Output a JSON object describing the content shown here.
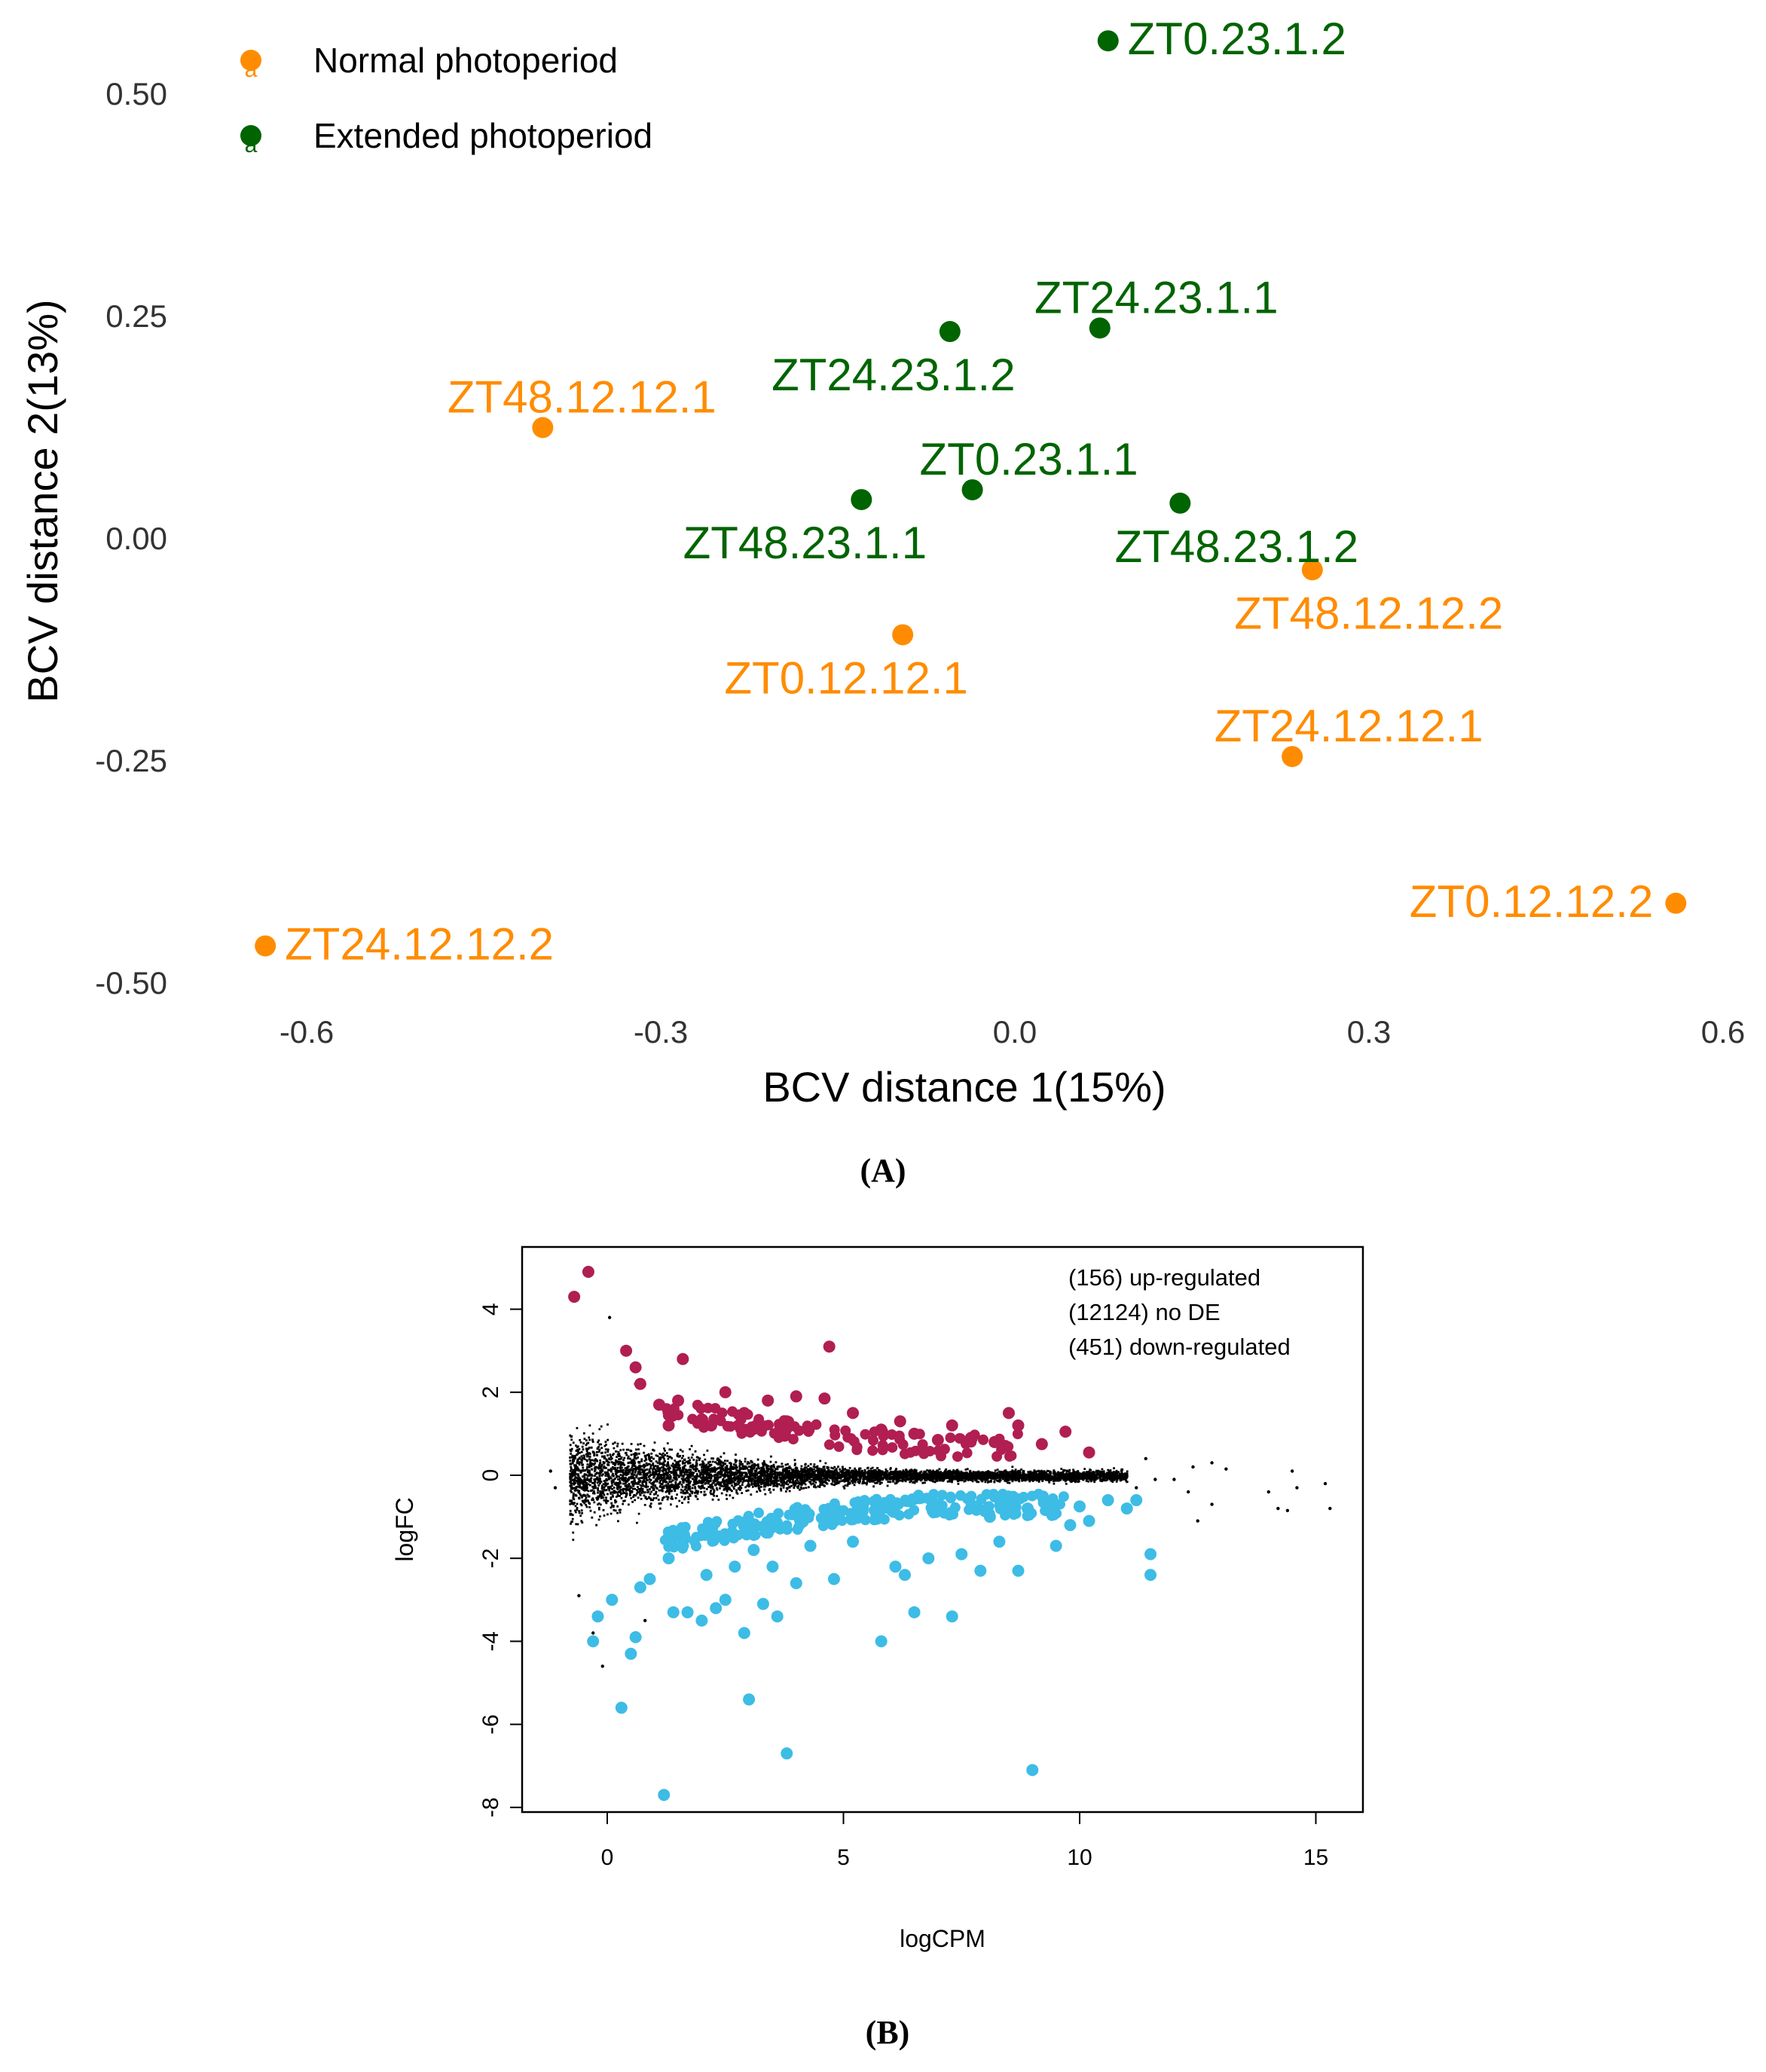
{
  "panel_a": {
    "panel_label": "(A)",
    "chart_data": {
      "type": "scatter",
      "title": "",
      "xlabel": "BCV distance 1(15%)",
      "ylabel": "BCV distance 2(13%)",
      "xlim": [
        -0.66,
        0.6
      ],
      "ylim": [
        -0.5,
        0.56
      ],
      "x_ticks": [
        -0.6,
        -0.3,
        0.0,
        0.3,
        0.6
      ],
      "x_tick_labels": [
        "-0.6",
        "-0.3",
        "0.0",
        "0.3",
        "0.6"
      ],
      "y_ticks": [
        0.5,
        0.25,
        0.0,
        -0.25,
        -0.5
      ],
      "y_tick_labels": [
        "0.50",
        "0.25",
        "0.00",
        "-0.25",
        "-0.50"
      ],
      "legend": {
        "position": "top-left",
        "marker_glyph": "a",
        "entries": [
          {
            "label": "Normal photoperiod",
            "color": "#FF8C00"
          },
          {
            "label": "Extended photoperiod",
            "color": "#006400"
          }
        ]
      },
      "series": [
        {
          "name": "Normal photoperiod",
          "color": "#FF8C00",
          "points": [
            {
              "label": "ZT48.12.12.1",
              "x": -0.4,
              "y": 0.125,
              "label_pos": "above-left"
            },
            {
              "label": "ZT48.12.12.2",
              "x": 0.252,
              "y": -0.035,
              "label_pos": "below-right"
            },
            {
              "label": "ZT0.12.12.1",
              "x": -0.095,
              "y": -0.108,
              "label_pos": "below-left"
            },
            {
              "label": "ZT24.12.12.1",
              "x": 0.235,
              "y": -0.245,
              "label_pos": "above-right"
            },
            {
              "label": "ZT0.12.12.2",
              "x": 0.56,
              "y": -0.41,
              "label_pos": "left"
            },
            {
              "label": "ZT24.12.12.2",
              "x": -0.635,
              "y": -0.458,
              "label_pos": "right"
            }
          ]
        },
        {
          "name": "Extended photoperiod",
          "color": "#006400",
          "points": [
            {
              "label": "ZT0.23.1.2",
              "x": 0.079,
              "y": 0.56,
              "label_pos": "right"
            },
            {
              "label": "ZT24.23.1.1",
              "x": 0.072,
              "y": 0.237,
              "label_pos": "above-right"
            },
            {
              "label": "ZT24.23.1.2",
              "x": -0.055,
              "y": 0.233,
              "label_pos": "below-left"
            },
            {
              "label": "ZT0.23.1.1",
              "x": -0.036,
              "y": 0.055,
              "label_pos": "above-right"
            },
            {
              "label": "ZT48.23.1.1",
              "x": -0.13,
              "y": 0.044,
              "label_pos": "below-left"
            },
            {
              "label": "ZT48.23.1.2",
              "x": 0.14,
              "y": 0.04,
              "label_pos": "below-right"
            }
          ]
        }
      ]
    }
  },
  "panel_b": {
    "panel_label": "(B)",
    "chart_data": {
      "type": "scatter",
      "title": "",
      "xlabel": "logCPM",
      "ylabel": "logFC",
      "xlim": [
        -1.8,
        15.9
      ],
      "ylim": [
        -8.2,
        5.5
      ],
      "x_ticks": [
        0,
        5,
        10,
        15
      ],
      "x_tick_labels": [
        "0",
        "5",
        "10",
        "15"
      ],
      "y_ticks": [
        -8,
        -6,
        -4,
        -2,
        0,
        2,
        4
      ],
      "y_tick_labels": [
        "-8",
        "-6",
        "-4",
        "-2",
        "0",
        "2",
        "4"
      ],
      "legend": {
        "position": "top-right",
        "entries": [
          {
            "label": "(156) up-regulated",
            "color": "#B01E52"
          },
          {
            "label": "(12124) no DE",
            "color": "#000000"
          },
          {
            "label": "(451) down-regulated",
            "color": "#3DBCE6"
          }
        ]
      },
      "series": [
        {
          "name": "up-regulated",
          "count": 156,
          "color": "#B01E52",
          "highlight_points": [
            [
              -0.7,
              4.3
            ],
            [
              -0.4,
              4.9
            ],
            [
              0.4,
              3.0
            ],
            [
              0.6,
              2.6
            ],
            [
              0.7,
              2.2
            ],
            [
              1.1,
              1.7
            ],
            [
              1.6,
              2.8
            ],
            [
              1.5,
              1.8
            ],
            [
              2.5,
              2.0
            ],
            [
              2.9,
              1.5
            ],
            [
              3.4,
              1.8
            ],
            [
              4.0,
              1.9
            ],
            [
              4.7,
              3.1
            ],
            [
              4.6,
              1.85
            ],
            [
              5.2,
              1.5
            ],
            [
              6.2,
              1.3
            ],
            [
              6.5,
              1.0
            ],
            [
              7.0,
              0.85
            ],
            [
              7.3,
              1.2
            ],
            [
              7.7,
              0.9
            ],
            [
              8.2,
              0.8
            ],
            [
              8.5,
              1.5
            ],
            [
              8.7,
              1.2
            ],
            [
              9.2,
              0.75
            ],
            [
              9.7,
              1.05
            ],
            [
              10.2,
              0.55
            ],
            [
              5.8,
              1.1
            ],
            [
              3.8,
              1.3
            ],
            [
              2.2,
              1.2
            ],
            [
              1.3,
              1.2
            ]
          ]
        },
        {
          "name": "no DE",
          "count": 12124,
          "color": "#000000",
          "outlier_points": [
            [
              0.05,
              3.8
            ],
            [
              0.6,
              2.2
            ],
            [
              -1.2,
              0.1
            ],
            [
              -1.1,
              -0.3
            ],
            [
              -0.6,
              -2.9
            ],
            [
              -0.3,
              -3.8
            ],
            [
              -0.1,
              -4.6
            ],
            [
              0.8,
              -3.5
            ],
            [
              11.2,
              -0.3
            ],
            [
              11.6,
              -0.1
            ],
            [
              12.4,
              0.2
            ],
            [
              12.8,
              0.3
            ],
            [
              13.1,
              0.15
            ],
            [
              12.3,
              -0.4
            ],
            [
              12.5,
              -1.1
            ],
            [
              12.8,
              -0.7
            ],
            [
              14.0,
              -0.4
            ],
            [
              14.2,
              -0.8
            ],
            [
              14.4,
              -0.85
            ],
            [
              14.5,
              0.1
            ],
            [
              14.6,
              -0.3
            ],
            [
              15.2,
              -0.2
            ],
            [
              15.3,
              -0.8
            ],
            [
              12.0,
              -0.1
            ],
            [
              11.4,
              0.4
            ]
          ]
        },
        {
          "name": "down-regulated",
          "count": 451,
          "color": "#3DBCE6",
          "highlight_points": [
            [
              -0.3,
              -4.0
            ],
            [
              -0.2,
              -3.4
            ],
            [
              0.1,
              -3.0
            ],
            [
              0.3,
              -5.6
            ],
            [
              0.5,
              -4.3
            ],
            [
              0.6,
              -3.9
            ],
            [
              0.7,
              -2.7
            ],
            [
              0.9,
              -2.5
            ],
            [
              1.2,
              -7.7
            ],
            [
              1.3,
              -2.0
            ],
            [
              1.4,
              -3.3
            ],
            [
              1.7,
              -3.3
            ],
            [
              2.0,
              -3.5
            ],
            [
              2.1,
              -2.4
            ],
            [
              2.3,
              -3.2
            ],
            [
              2.5,
              -3.0
            ],
            [
              2.7,
              -2.2
            ],
            [
              2.9,
              -3.8
            ],
            [
              3.0,
              -5.4
            ],
            [
              3.1,
              -1.8
            ],
            [
              3.3,
              -3.1
            ],
            [
              3.5,
              -2.2
            ],
            [
              3.6,
              -3.4
            ],
            [
              3.8,
              -6.7
            ],
            [
              4.0,
              -2.6
            ],
            [
              4.3,
              -1.7
            ],
            [
              4.8,
              -2.5
            ],
            [
              5.2,
              -1.6
            ],
            [
              5.8,
              -4.0
            ],
            [
              6.1,
              -2.2
            ],
            [
              6.3,
              -2.4
            ],
            [
              6.5,
              -3.3
            ],
            [
              6.8,
              -2.0
            ],
            [
              7.3,
              -3.4
            ],
            [
              7.5,
              -1.9
            ],
            [
              7.9,
              -2.3
            ],
            [
              8.3,
              -1.6
            ],
            [
              8.7,
              -2.3
            ],
            [
              9.0,
              -7.1
            ],
            [
              9.5,
              -1.7
            ],
            [
              9.8,
              -1.2
            ],
            [
              10.2,
              -1.1
            ],
            [
              10.6,
              -0.6
            ],
            [
              11.0,
              -0.8
            ],
            [
              11.2,
              -0.6
            ],
            [
              11.5,
              -1.9
            ],
            [
              11.5,
              -2.4
            ],
            [
              8.1,
              -1.0
            ],
            [
              8.9,
              -0.8
            ],
            [
              10.0,
              -0.75
            ]
          ]
        }
      ]
    }
  }
}
